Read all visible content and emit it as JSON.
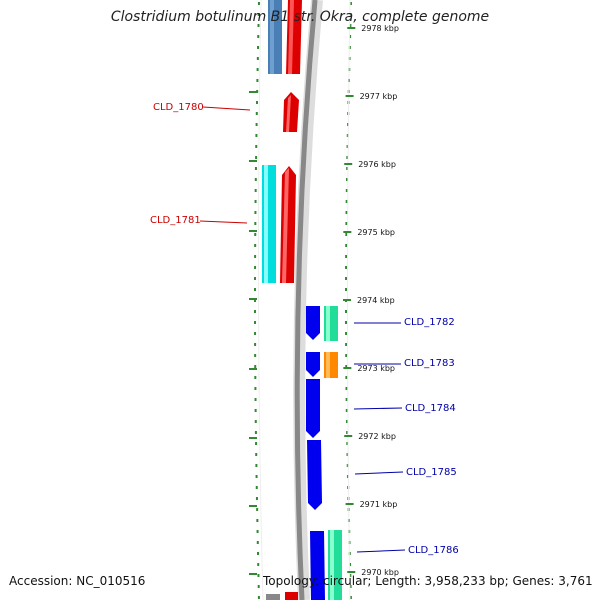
{
  "title": "Clostridium botulinum B1 str. Okra, complete genome",
  "footer": {
    "accession": "Accession: NC_010516",
    "summary": "Topology: circular; Length: 3,958,233 bp; Genes: 3,761"
  },
  "colors": {
    "forward_label": "#cc0000",
    "reverse_label": "#0000aa",
    "backbone": "#888888",
    "ticks": "#338833"
  },
  "scale_ticks": [
    {
      "kbp": 2978,
      "label": "2978 kbp"
    },
    {
      "kbp": 2977,
      "label": "2977 kbp"
    },
    {
      "kbp": 2976,
      "label": "2976 kbp"
    },
    {
      "kbp": 2975,
      "label": "2975 kbp"
    },
    {
      "kbp": 2974,
      "label": "2974 kbp"
    },
    {
      "kbp": 2973,
      "label": "2973 kbp"
    },
    {
      "kbp": 2972,
      "label": "2972 kbp"
    },
    {
      "kbp": 2971,
      "label": "2971 kbp"
    },
    {
      "kbp": 2970,
      "label": "2970 kbp"
    }
  ],
  "gene_labels": [
    {
      "name": "CLD_1780",
      "strand": "forward"
    },
    {
      "name": "CLD_1781",
      "strand": "forward"
    },
    {
      "name": "CLD_1782",
      "strand": "reverse"
    },
    {
      "name": "CLD_1783",
      "strand": "reverse"
    },
    {
      "name": "CLD_1784",
      "strand": "reverse"
    },
    {
      "name": "CLD_1785",
      "strand": "reverse"
    },
    {
      "name": "CLD_1786",
      "strand": "reverse"
    }
  ]
}
